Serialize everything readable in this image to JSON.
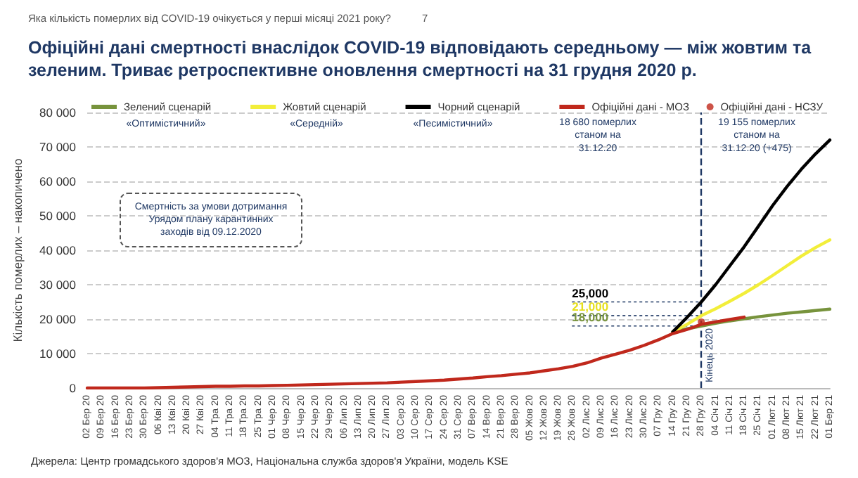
{
  "chart_data": {
    "type": "line",
    "title": "Офіційні дані смертності внаслідок COVID-19 відповідають середньому — між жовтим та зеленим. Триває ретроспективне оновлення смертності на 31 грудня 2020 р.",
    "ylabel": "Кількість померлих – накопичено",
    "categories": [
      "02 Бер 20",
      "09 Бер 20",
      "16 Бер 20",
      "23 Бер 20",
      "30 Бер 20",
      "06 Кві 20",
      "13 Кві 20",
      "20 Кві 20",
      "27 Кві 20",
      "04 Тра 20",
      "11 Тра 20",
      "18 Тра 20",
      "25 Тра 20",
      "01 Чер 20",
      "08 Чер 20",
      "15 Чер 20",
      "22 Чер 20",
      "29 Чер 20",
      "06 Лип 20",
      "13 Лип 20",
      "20 Лип 20",
      "27 Лип 20",
      "03 Сер 20",
      "10 Сер 20",
      "17 Сер 20",
      "24 Сер 20",
      "31 Сер 20",
      "07 Вер 20",
      "14 Вер 20",
      "21 Вер 20",
      "28 Вер 20",
      "05 Жов 20",
      "12 Жов 20",
      "19 Жов 20",
      "26 Жов 20",
      "02 Лис 20",
      "09 Лис 20",
      "16 Лис 20",
      "23 Лис 20",
      "30 Лис 20",
      "07 Гру 20",
      "14 Гру 20",
      "21 Гру 20",
      "28 Гру 20",
      "04 Січ 21",
      "11 Січ 21",
      "18 Січ 21",
      "25 Січ 21",
      "01 Лют 21",
      "08 Лют 21",
      "15 Лют 21",
      "22 Лют 21",
      "01 Бер 21"
    ],
    "series": [
      {
        "name": "Зелений сценарій",
        "color": "#77933c",
        "values": [
          null,
          null,
          null,
          null,
          null,
          null,
          null,
          null,
          null,
          null,
          null,
          null,
          null,
          null,
          null,
          null,
          null,
          null,
          null,
          null,
          null,
          null,
          null,
          null,
          null,
          null,
          null,
          null,
          null,
          null,
          null,
          null,
          null,
          null,
          null,
          null,
          null,
          null,
          null,
          null,
          null,
          16300,
          17200,
          18000,
          18800,
          19500,
          20100,
          20700,
          21200,
          21700,
          22100,
          22500,
          22900
        ]
      },
      {
        "name": "Жовтий сценарій",
        "color": "#f2ee3a",
        "values": [
          null,
          null,
          null,
          null,
          null,
          null,
          null,
          null,
          null,
          null,
          null,
          null,
          null,
          null,
          null,
          null,
          null,
          null,
          null,
          null,
          null,
          null,
          null,
          null,
          null,
          null,
          null,
          null,
          null,
          null,
          null,
          null,
          null,
          null,
          null,
          null,
          null,
          null,
          null,
          null,
          null,
          16300,
          18500,
          21000,
          23000,
          25200,
          27500,
          30000,
          32700,
          35500,
          38300,
          40800,
          43000
        ]
      },
      {
        "name": "Чорний сценарій",
        "color": "#000000",
        "values": [
          null,
          null,
          null,
          null,
          null,
          null,
          null,
          null,
          null,
          null,
          null,
          null,
          null,
          null,
          null,
          null,
          null,
          null,
          null,
          null,
          null,
          null,
          null,
          null,
          null,
          null,
          null,
          null,
          null,
          null,
          null,
          null,
          null,
          null,
          null,
          null,
          null,
          null,
          null,
          null,
          null,
          16300,
          20500,
          25000,
          30000,
          35500,
          41000,
          47000,
          53000,
          58500,
          63500,
          68000,
          72000
        ]
      },
      {
        "name": "Офіційні дані - МОЗ",
        "color": "#c0281c",
        "values": [
          0,
          0,
          0,
          0,
          0,
          100,
          200,
          300,
          400,
          500,
          500,
          600,
          600,
          700,
          800,
          900,
          1000,
          1100,
          1200,
          1300,
          1400,
          1500,
          1700,
          1900,
          2100,
          2300,
          2600,
          2900,
          3300,
          3600,
          4000,
          4400,
          5000,
          5600,
          6300,
          7300,
          8700,
          9800,
          11000,
          12400,
          14000,
          15800,
          17000,
          18500,
          19200,
          19900,
          20600,
          null,
          null,
          null,
          null,
          null,
          null
        ]
      },
      {
        "name": "Офіційні дані - НСЗУ",
        "type": "scatter",
        "marker": "circle",
        "color": "#c0281c",
        "x": [
          "28 Гру 20"
        ],
        "values": [
          19200
        ]
      }
    ],
    "ylim": [
      0,
      80000
    ],
    "yticks": [
      {
        "value": 0,
        "label": "0"
      },
      {
        "value": 10000,
        "label": "10 000"
      },
      {
        "value": 20000,
        "label": "20 000"
      },
      {
        "value": 30000,
        "label": "30 000"
      },
      {
        "value": 40000,
        "label": "40 000"
      },
      {
        "value": 50000,
        "label": "50 000"
      },
      {
        "value": 60000,
        "label": "60 000"
      },
      {
        "value": 70000,
        "label": "70 000"
      },
      {
        "value": 80000,
        "label": "80 000"
      }
    ],
    "grid": "y",
    "legend": "top",
    "marker": "none",
    "line_style": "solid",
    "ref_lines": [
      {
        "axis": "x",
        "value": "28 Гру 20",
        "label": "Кінець 2020",
        "color": "#1f3864",
        "line_style": "dashed"
      }
    ],
    "annotations": [
      "Яка кількість померлих від COVID-19 очікується у перші місяці 2021 року?",
      "7",
      "«Оптимістичний»",
      "«Середній»",
      "«Песимістичний»",
      "18 680 померлих станом на 31.12.20",
      "19 155 померлих станом на 31.12.20 (+475)",
      "Смертність за умови дотримання Урядом плану карантинних заходів від 09.12.2020",
      {
        "text": "25,000",
        "x": "28 Гру 20",
        "y": 25000
      },
      {
        "text": "21,000",
        "x": "28 Гру 20",
        "y": 21000
      },
      {
        "text": "18,000",
        "x": "28 Гру 20",
        "y": 18000
      },
      "Джерела: Центр громадського здоров'я МОЗ, Національна служба здоров'я України, модель KSE"
    ]
  }
}
